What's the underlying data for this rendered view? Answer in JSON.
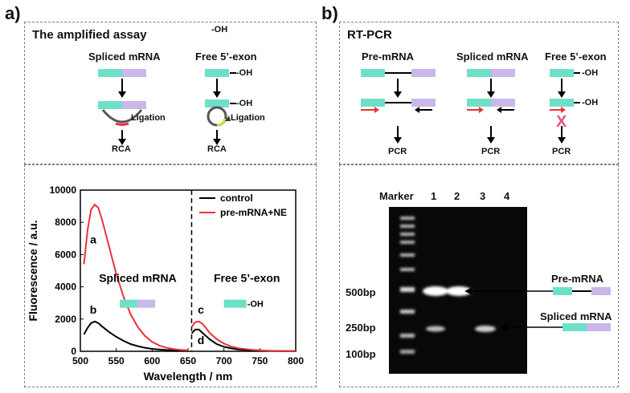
{
  "panel_a": {
    "letter": "a)",
    "title": "The amplified assay",
    "spliced_label": "Spliced mRNA",
    "free_label": "Free 5’-exon",
    "oh1": "-OH",
    "oh2": "-OH",
    "ligation1": "Ligation",
    "ligation2": "Ligation",
    "rca1": "RCA",
    "rca2": "RCA"
  },
  "panel_b": {
    "letter": "b)",
    "title": "RT-PCR",
    "pre_label": "Pre-mRNA",
    "spliced_label": "Spliced mRNA",
    "free_label": "Free 5’-exon",
    "oh1": "-OH",
    "oh2": "-OH",
    "pcr": [
      "PCR",
      "PCR",
      "PCR"
    ],
    "x_mark": "X"
  },
  "gel": {
    "lane_labels": [
      "Marker",
      "1",
      "2",
      "3",
      "4"
    ],
    "ladder_labels": [
      "500bp",
      "250bp",
      "100bp"
    ],
    "band_pre_label": "Pre-mRNA",
    "band_spliced_label": "Spliced mRNA"
  },
  "colors": {
    "exon1": "#6fe0c8",
    "exon2": "#c9b8e8",
    "control": "#000000",
    "sample": "#e8333b",
    "primer": "#e8333b",
    "x_mark": "#e8508a"
  },
  "chart_data": {
    "type": "line",
    "xlabel": "Wavelength / nm",
    "ylabel": "Fluorescence / a.u.",
    "xlim": [
      500,
      800
    ],
    "ylim": [
      0,
      10000
    ],
    "xticks": [
      "500",
      "550",
      "600",
      "650",
      "700",
      "750",
      "800"
    ],
    "yticks": [
      "0",
      "2000",
      "4000",
      "6000",
      "8000",
      "10000"
    ],
    "legend": [
      "control",
      "pre-mRNA+NE"
    ],
    "legend_position": "top-right",
    "annotations": [
      "a",
      "b",
      "c",
      "d"
    ],
    "inset_spliced": "Spliced mRNA",
    "inset_free": "Free 5’-exon",
    "inset_oh": "-OH",
    "series": [
      {
        "name": "control",
        "segment1": {
          "x": [
            505,
            510,
            515,
            520,
            525,
            530,
            540,
            550,
            560,
            570,
            580,
            590,
            600,
            610,
            620,
            630,
            640,
            650
          ],
          "y": [
            1050,
            1450,
            1750,
            1850,
            1750,
            1550,
            1200,
            900,
            650,
            450,
            320,
            220,
            150,
            110,
            80,
            60,
            40,
            30
          ]
        },
        "segment2": {
          "x": [
            655,
            660,
            665,
            670,
            675,
            680,
            690,
            700,
            710,
            720,
            740,
            760,
            780,
            800
          ],
          "y": [
            1100,
            1350,
            1350,
            1150,
            950,
            750,
            450,
            280,
            180,
            110,
            60,
            30,
            15,
            10
          ]
        }
      },
      {
        "name": "pre-mRNA+NE",
        "segment1": {
          "x": [
            505,
            510,
            515,
            520,
            525,
            530,
            540,
            550,
            560,
            570,
            580,
            590,
            600,
            610,
            620,
            630,
            640,
            650
          ],
          "y": [
            5400,
            7500,
            8800,
            9100,
            8900,
            8200,
            6500,
            4800,
            3400,
            2300,
            1500,
            950,
            580,
            360,
            220,
            140,
            90,
            60
          ]
        },
        "segment2": {
          "x": [
            655,
            660,
            665,
            670,
            675,
            680,
            690,
            700,
            710,
            720,
            740,
            760,
            780,
            800
          ],
          "y": [
            1500,
            1800,
            1850,
            1700,
            1450,
            1150,
            750,
            480,
            300,
            190,
            90,
            40,
            20,
            10
          ]
        }
      }
    ]
  }
}
